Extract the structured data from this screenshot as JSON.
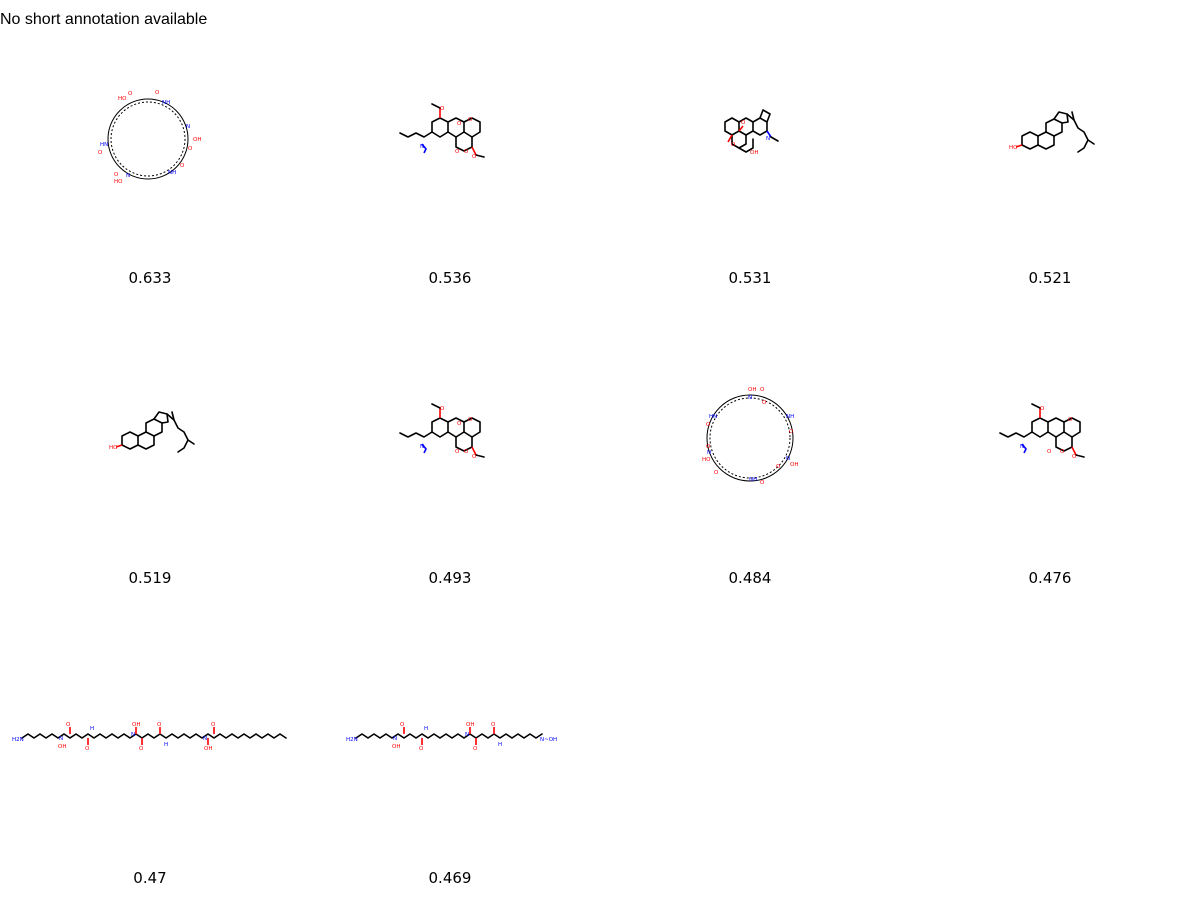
{
  "annotation": "No short annotation available",
  "molecules": [
    {
      "score": "0.633",
      "structure": "macrocycle"
    },
    {
      "score": "0.536",
      "structure": "fused-lactone-amine"
    },
    {
      "score": "0.531",
      "structure": "polycyclic-alkaloid"
    },
    {
      "score": "0.521",
      "structure": "steroid"
    },
    {
      "score": "0.519",
      "structure": "steroid"
    },
    {
      "score": "0.493",
      "structure": "fused-lactone-amine"
    },
    {
      "score": "0.484",
      "structure": "macrocycle"
    },
    {
      "score": "0.476",
      "structure": "fused-lactone-amine"
    },
    {
      "score": "0.47",
      "structure": "linear-chain"
    },
    {
      "score": "0.469",
      "structure": "linear-chain"
    }
  ],
  "atom_labels": {
    "hydroxyl": "OH",
    "hydroxyl_left": "HO",
    "amine_h": "NH",
    "amine_h_left": "HN",
    "nitrogen": "N",
    "oxygen": "O",
    "amino": "H2N",
    "hydrogen": "H",
    "hydroxyamine_end": "N~OH"
  }
}
